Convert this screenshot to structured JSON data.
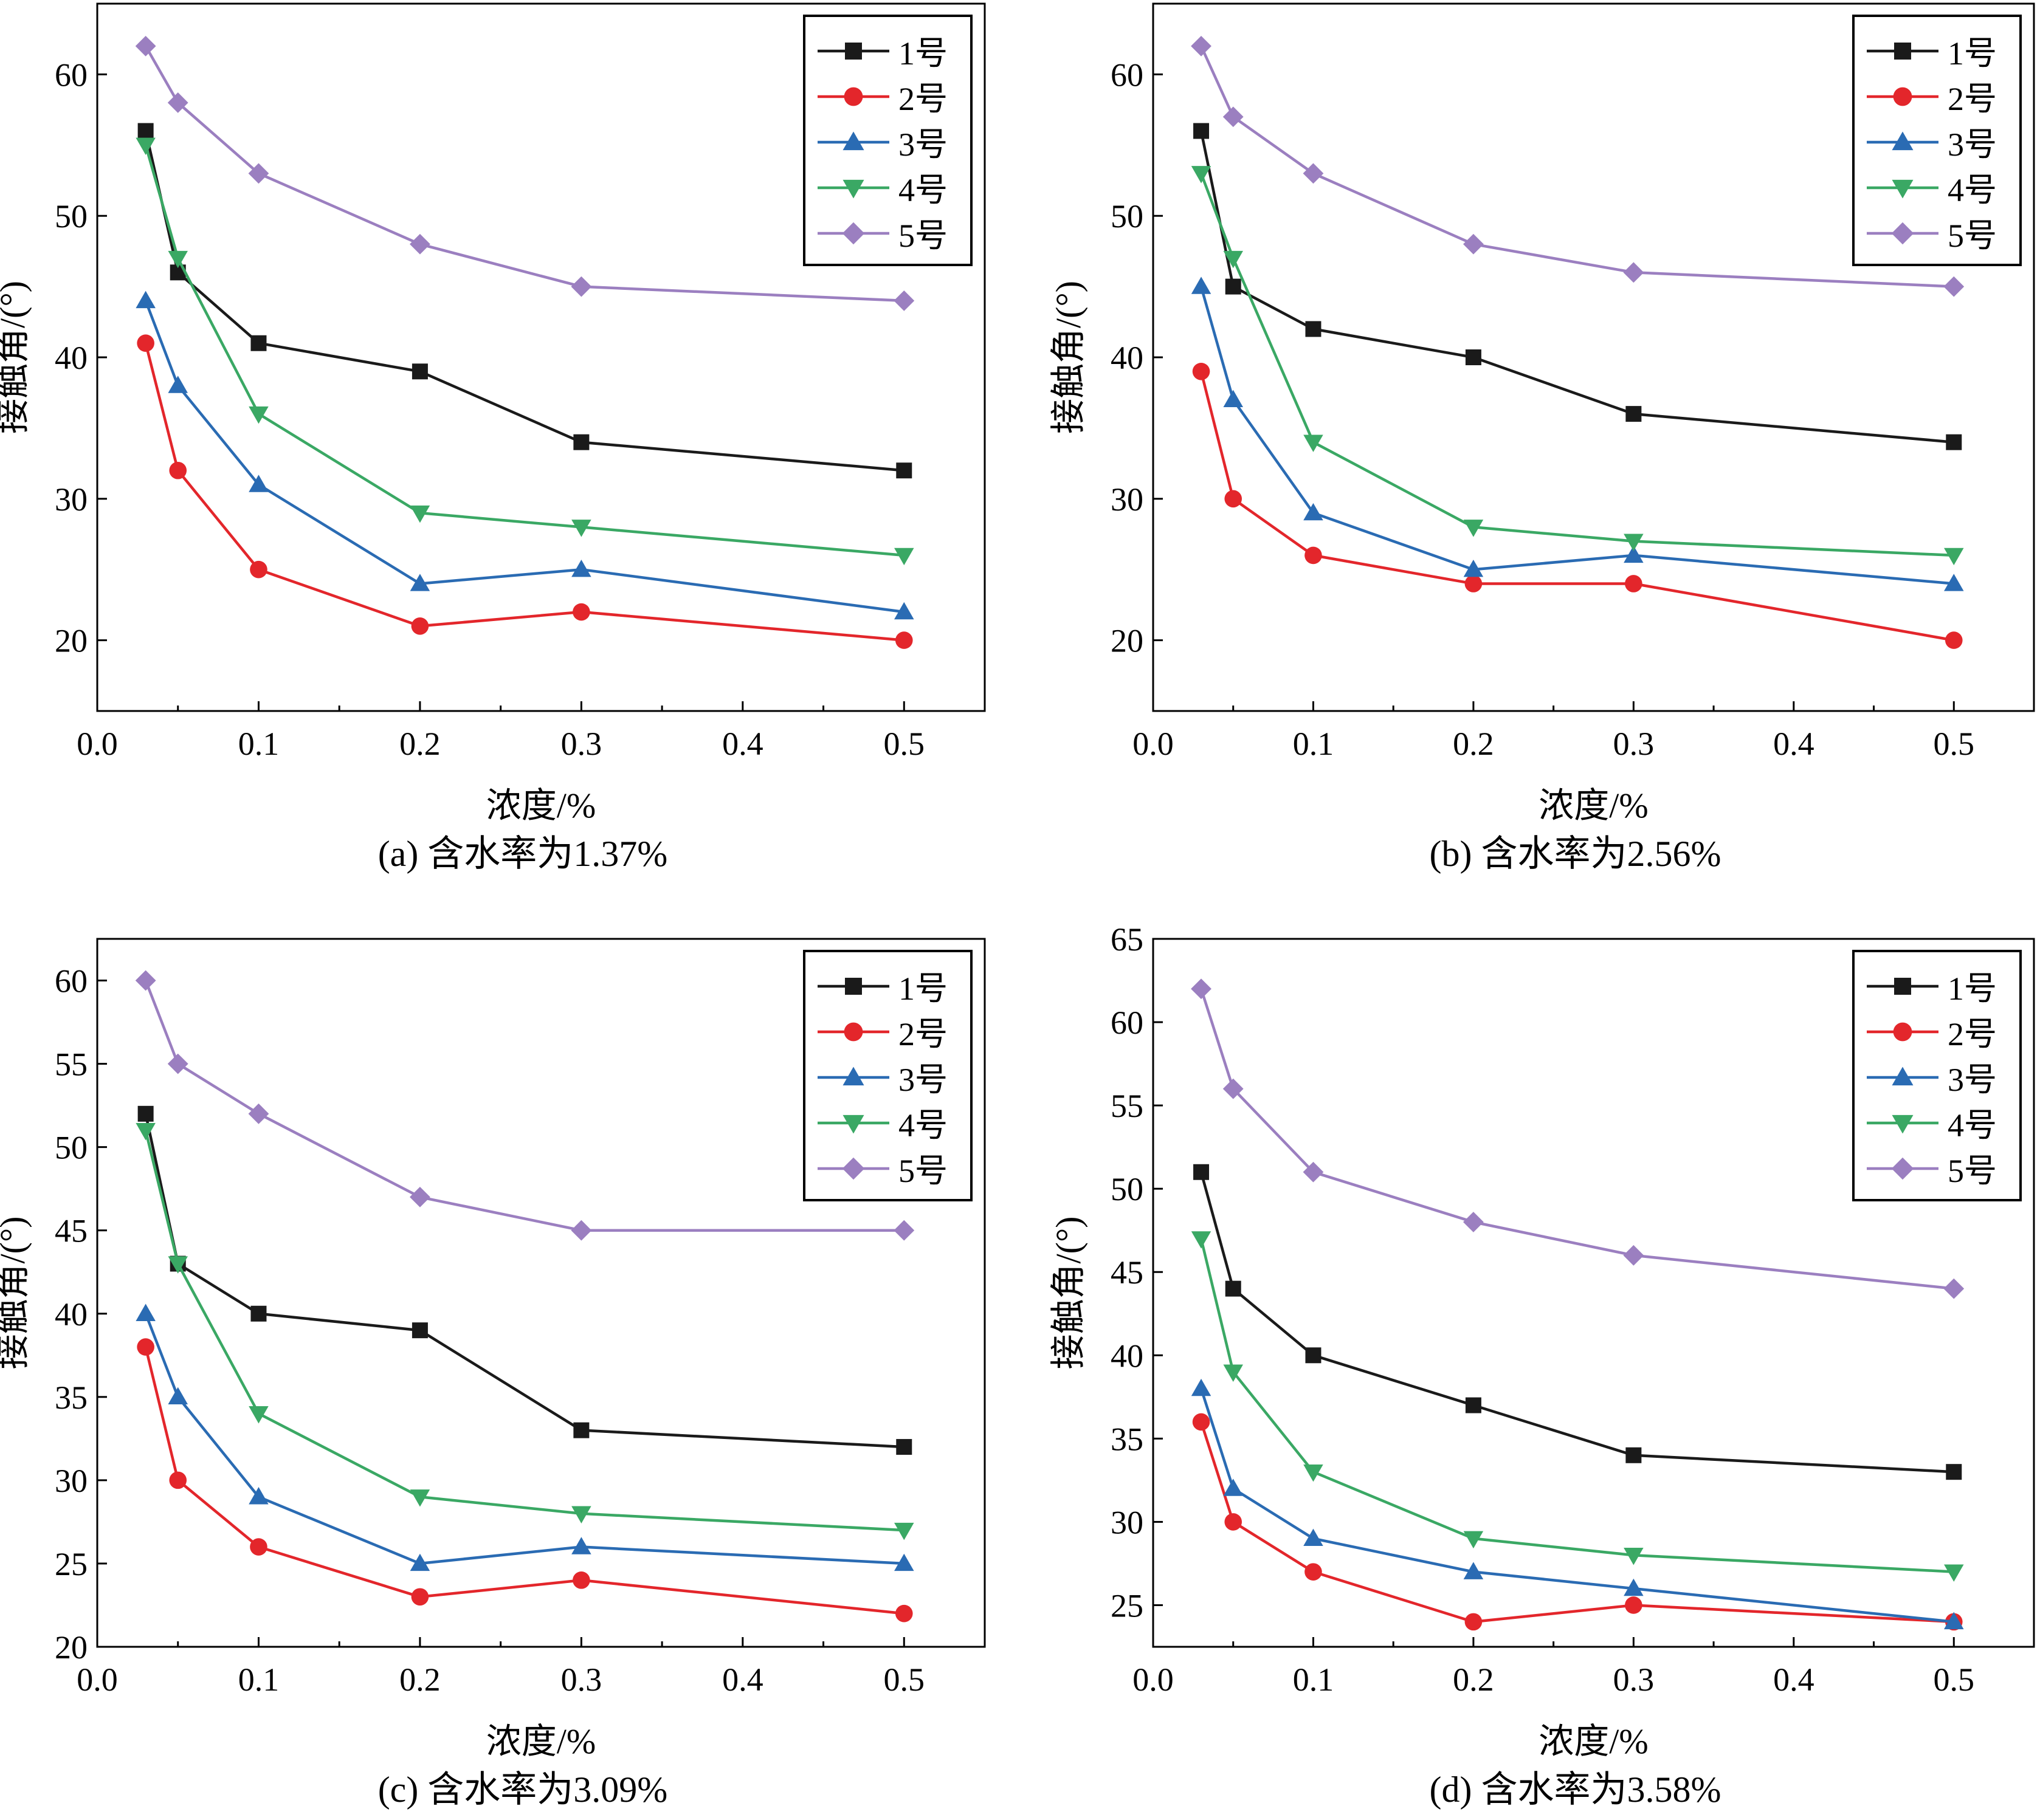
{
  "chart_data": [
    {
      "type": "line",
      "caption": "(a) 含水率为1.37%",
      "xlabel": "浓度/%",
      "ylabel": "接触角/(°)",
      "xlim": [
        0.0,
        0.55
      ],
      "ylim": [
        15,
        65
      ],
      "xticks": [
        0.0,
        0.1,
        0.2,
        0.3,
        0.4,
        0.5
      ],
      "xtick_labels": [
        "0.0",
        "0.1",
        "0.2",
        "0.3",
        "0.4",
        "0.5"
      ],
      "yticks": [
        20,
        30,
        40,
        50,
        60
      ],
      "ytick_labels": [
        "20",
        "30",
        "40",
        "50",
        "60"
      ],
      "legend_position": "top-right",
      "x": [
        0.03,
        0.05,
        0.1,
        0.2,
        0.3,
        0.5
      ],
      "series": [
        {
          "name": "1号",
          "values": [
            56,
            46,
            41,
            39,
            34,
            32
          ]
        },
        {
          "name": "2号",
          "values": [
            41,
            32,
            25,
            21,
            22,
            20
          ]
        },
        {
          "name": "3号",
          "values": [
            44,
            38,
            31,
            24,
            25,
            22
          ]
        },
        {
          "name": "4号",
          "values": [
            55,
            47,
            36,
            29,
            28,
            26
          ]
        },
        {
          "name": "5号",
          "values": [
            62,
            58,
            53,
            48,
            45,
            44
          ]
        }
      ]
    },
    {
      "type": "line",
      "caption": "(b) 含水率为2.56%",
      "xlabel": "浓度/%",
      "ylabel": "接触角/(°)",
      "xlim": [
        0.0,
        0.55
      ],
      "ylim": [
        15,
        65
      ],
      "xticks": [
        0.0,
        0.1,
        0.2,
        0.3,
        0.4,
        0.5
      ],
      "xtick_labels": [
        "0.0",
        "0.1",
        "0.2",
        "0.3",
        "0.4",
        "0.5"
      ],
      "yticks": [
        20,
        30,
        40,
        50,
        60
      ],
      "ytick_labels": [
        "20",
        "30",
        "40",
        "50",
        "60"
      ],
      "legend_position": "top-right",
      "x": [
        0.03,
        0.05,
        0.1,
        0.2,
        0.3,
        0.5
      ],
      "series": [
        {
          "name": "1号",
          "values": [
            56,
            45,
            42,
            40,
            36,
            34
          ]
        },
        {
          "name": "2号",
          "values": [
            39,
            30,
            26,
            24,
            24,
            20
          ]
        },
        {
          "name": "3号",
          "values": [
            45,
            37,
            29,
            25,
            26,
            24
          ]
        },
        {
          "name": "4号",
          "values": [
            53,
            47,
            34,
            28,
            27,
            26
          ]
        },
        {
          "name": "5号",
          "values": [
            62,
            57,
            53,
            48,
            46,
            45
          ]
        }
      ]
    },
    {
      "type": "line",
      "caption": "(c) 含水率为3.09%",
      "xlabel": "浓度/%",
      "ylabel": "接触角/(°)",
      "xlim": [
        0.0,
        0.55
      ],
      "ylim": [
        20,
        62.5
      ],
      "xticks": [
        0.0,
        0.1,
        0.2,
        0.3,
        0.4,
        0.5
      ],
      "xtick_labels": [
        "0.0",
        "0.1",
        "0.2",
        "0.3",
        "0.4",
        "0.5"
      ],
      "yticks": [
        20,
        25,
        30,
        35,
        40,
        45,
        50,
        55,
        60
      ],
      "ytick_labels": [
        "20",
        "25",
        "30",
        "35",
        "40",
        "45",
        "50",
        "55",
        "60"
      ],
      "legend_position": "top-right",
      "x": [
        0.03,
        0.05,
        0.1,
        0.2,
        0.3,
        0.5
      ],
      "series": [
        {
          "name": "1号",
          "values": [
            52,
            43,
            40,
            39,
            33,
            32
          ]
        },
        {
          "name": "2号",
          "values": [
            38,
            30,
            26,
            23,
            24,
            22
          ]
        },
        {
          "name": "3号",
          "values": [
            40,
            35,
            29,
            25,
            26,
            25
          ]
        },
        {
          "name": "4号",
          "values": [
            51,
            43,
            34,
            29,
            28,
            27
          ]
        },
        {
          "name": "5号",
          "values": [
            60,
            55,
            52,
            47,
            45,
            45
          ]
        }
      ]
    },
    {
      "type": "line",
      "caption": "(d) 含水率为3.58%",
      "xlabel": "浓度/%",
      "ylabel": "接触角/(°)",
      "xlim": [
        0.0,
        0.55
      ],
      "ylim": [
        22.5,
        65
      ],
      "xticks": [
        0.0,
        0.1,
        0.2,
        0.3,
        0.4,
        0.5
      ],
      "xtick_labels": [
        "0.0",
        "0.1",
        "0.2",
        "0.3",
        "0.4",
        "0.5"
      ],
      "yticks": [
        25,
        30,
        35,
        40,
        45,
        50,
        55,
        60,
        65
      ],
      "ytick_labels": [
        "25",
        "30",
        "35",
        "40",
        "45",
        "50",
        "55",
        "60",
        "65"
      ],
      "legend_position": "top-right",
      "x": [
        0.03,
        0.05,
        0.1,
        0.2,
        0.3,
        0.5
      ],
      "series": [
        {
          "name": "1号",
          "values": [
            51,
            44,
            40,
            37,
            34,
            33
          ]
        },
        {
          "name": "2号",
          "values": [
            36,
            30,
            27,
            24,
            25,
            24
          ]
        },
        {
          "name": "3号",
          "values": [
            38,
            32,
            29,
            27,
            26,
            24
          ]
        },
        {
          "name": "4号",
          "values": [
            47,
            39,
            33,
            29,
            28,
            27
          ]
        },
        {
          "name": "5号",
          "values": [
            62,
            56,
            51,
            48,
            46,
            44
          ]
        }
      ]
    }
  ],
  "series_styles": [
    {
      "color": "#1a1a1a",
      "marker": "square"
    },
    {
      "color": "#e3262b",
      "marker": "circle"
    },
    {
      "color": "#2a6bb3",
      "marker": "triangle-up"
    },
    {
      "color": "#3aa864",
      "marker": "triangle-down"
    },
    {
      "color": "#9b7fc0",
      "marker": "diamond"
    }
  ]
}
